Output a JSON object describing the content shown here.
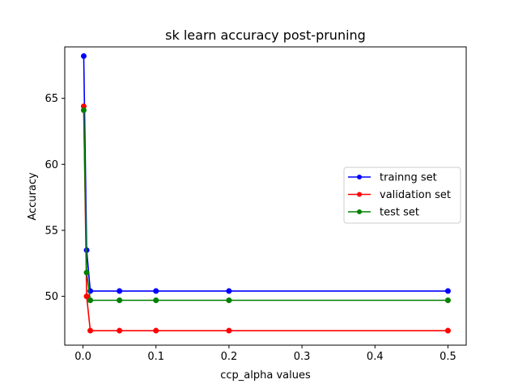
{
  "chart_data": {
    "type": "line",
    "title": "sk learn accuracy post-pruning",
    "xlabel": "ccp_alpha values",
    "ylabel": "Accuracy",
    "xlim": [
      -0.025,
      0.525
    ],
    "ylim": [
      46.3,
      68.9
    ],
    "xticks": [
      0.0,
      0.1,
      0.2,
      0.3,
      0.4,
      0.5
    ],
    "xtick_labels": [
      "0.0",
      "0.1",
      "0.2",
      "0.3",
      "0.4",
      "0.5"
    ],
    "yticks": [
      50,
      55,
      60,
      65
    ],
    "ytick_labels": [
      "50",
      "55",
      "60",
      "65"
    ],
    "legend_position": "center-right",
    "grid": false,
    "x": [
      0.001,
      0.005,
      0.01,
      0.05,
      0.1,
      0.2,
      0.5
    ],
    "series": [
      {
        "name": "trainng set",
        "color": "#0000ff",
        "values": [
          68.2,
          53.5,
          50.4,
          50.4,
          50.4,
          50.4,
          50.4
        ]
      },
      {
        "name": "validation set",
        "color": "#ff0000",
        "values": [
          64.4,
          50.0,
          47.4,
          47.4,
          47.4,
          47.4,
          47.4
        ]
      },
      {
        "name": "test set",
        "color": "#008000",
        "values": [
          64.1,
          51.8,
          49.7,
          49.7,
          49.7,
          49.7,
          49.7
        ]
      }
    ]
  }
}
